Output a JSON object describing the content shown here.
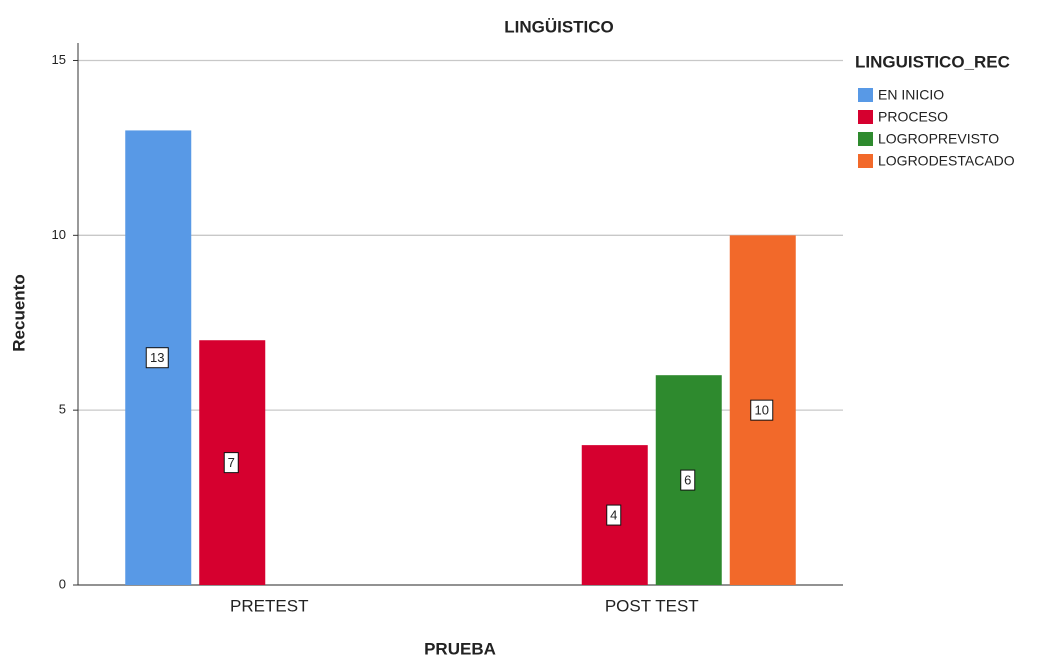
{
  "chart_data": {
    "type": "bar",
    "title": "LINGÜISTICO",
    "x_label": "PRUEBA",
    "y_label": "Recuento",
    "categories": [
      "PRETEST",
      "POST TEST"
    ],
    "legend_title": "LINGUISTICO_REC",
    "series": [
      {
        "name": "EN INICIO",
        "color": "#5899e6",
        "values": [
          13,
          null
        ]
      },
      {
        "name": "PROCESO",
        "color": "#d6002f",
        "values": [
          7,
          4
        ]
      },
      {
        "name": "LOGROPREVISTO",
        "color": "#2e8a2e",
        "values": [
          null,
          6
        ]
      },
      {
        "name": "LOGRODESTACADO",
        "color": "#f2692a",
        "values": [
          null,
          10
        ]
      }
    ],
    "ylim": [
      0,
      15.5
    ],
    "yticks": [
      0,
      5,
      10,
      15
    ],
    "grid": true,
    "legend": "right"
  }
}
